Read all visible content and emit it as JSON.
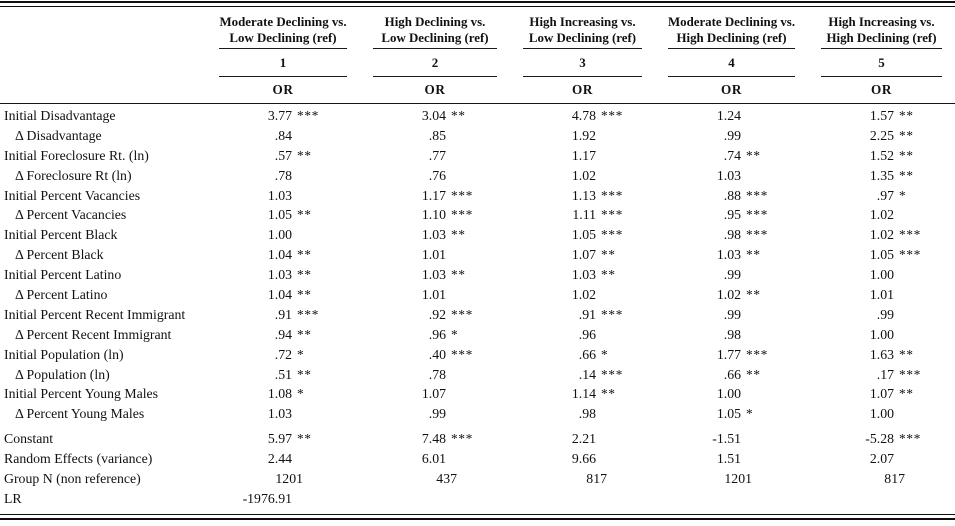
{
  "table": {
    "stat_header": "OR",
    "columns": [
      {
        "title_top": "Moderate Declining vs.",
        "title_bottom": "Low Declining (ref)",
        "number": "1",
        "stat": "OR"
      },
      {
        "title_top": "High Declining vs.",
        "title_bottom": "Low Declining (ref)",
        "number": "2",
        "stat": "OR"
      },
      {
        "title_top": "High Increasing vs.",
        "title_bottom": "Low Declining (ref)",
        "number": "3",
        "stat": "OR"
      },
      {
        "title_top": "Moderate Declining vs.",
        "title_bottom": "High Declining (ref)",
        "number": "4",
        "stat": "OR"
      },
      {
        "title_top": "High Increasing vs.",
        "title_bottom": "High Declining (ref)",
        "number": "5",
        "stat": "OR"
      }
    ],
    "rows": [
      {
        "label": "Initial Disadvantage",
        "indent": false,
        "gap_before": false,
        "cells": [
          {
            "v": "3.77",
            "s": "***"
          },
          {
            "v": "3.04",
            "s": "**"
          },
          {
            "v": "4.78",
            "s": "***"
          },
          {
            "v": "1.24",
            "s": ""
          },
          {
            "v": "1.57",
            "s": "**"
          }
        ]
      },
      {
        "label": "Δ Disadvantage",
        "indent": true,
        "gap_before": false,
        "cells": [
          {
            "v": ".84",
            "s": ""
          },
          {
            "v": ".85",
            "s": ""
          },
          {
            "v": "1.92",
            "s": ""
          },
          {
            "v": ".99",
            "s": ""
          },
          {
            "v": "2.25",
            "s": "**"
          }
        ]
      },
      {
        "label": "Initial Foreclosure Rt. (ln)",
        "indent": false,
        "gap_before": false,
        "cells": [
          {
            "v": ".57",
            "s": "**"
          },
          {
            "v": ".77",
            "s": ""
          },
          {
            "v": "1.17",
            "s": ""
          },
          {
            "v": ".74",
            "s": "**"
          },
          {
            "v": "1.52",
            "s": "**"
          }
        ]
      },
      {
        "label": "Δ Foreclosure Rt (ln)",
        "indent": true,
        "gap_before": false,
        "cells": [
          {
            "v": ".78",
            "s": ""
          },
          {
            "v": ".76",
            "s": ""
          },
          {
            "v": "1.02",
            "s": ""
          },
          {
            "v": "1.03",
            "s": ""
          },
          {
            "v": "1.35",
            "s": "**"
          }
        ]
      },
      {
        "label": "Initial Percent Vacancies",
        "indent": false,
        "gap_before": false,
        "cells": [
          {
            "v": "1.03",
            "s": ""
          },
          {
            "v": "1.17",
            "s": "***"
          },
          {
            "v": "1.13",
            "s": "***"
          },
          {
            "v": ".88",
            "s": "***"
          },
          {
            "v": ".97",
            "s": "*"
          }
        ]
      },
      {
        "label": "Δ Percent Vacancies",
        "indent": true,
        "gap_before": false,
        "cells": [
          {
            "v": "1.05",
            "s": "**"
          },
          {
            "v": "1.10",
            "s": "***"
          },
          {
            "v": "1.11",
            "s": "***"
          },
          {
            "v": ".95",
            "s": "***"
          },
          {
            "v": "1.02",
            "s": ""
          }
        ]
      },
      {
        "label": "Initial Percent Black",
        "indent": false,
        "gap_before": false,
        "cells": [
          {
            "v": "1.00",
            "s": ""
          },
          {
            "v": "1.03",
            "s": "**"
          },
          {
            "v": "1.05",
            "s": "***"
          },
          {
            "v": ".98",
            "s": "***"
          },
          {
            "v": "1.02",
            "s": "***"
          }
        ]
      },
      {
        "label": "Δ Percent Black",
        "indent": true,
        "gap_before": false,
        "cells": [
          {
            "v": "1.04",
            "s": "**"
          },
          {
            "v": "1.01",
            "s": ""
          },
          {
            "v": "1.07",
            "s": "**"
          },
          {
            "v": "1.03",
            "s": "**"
          },
          {
            "v": "1.05",
            "s": "***"
          }
        ]
      },
      {
        "label": "Initial Percent Latino",
        "indent": false,
        "gap_before": false,
        "cells": [
          {
            "v": "1.03",
            "s": "**"
          },
          {
            "v": "1.03",
            "s": "**"
          },
          {
            "v": "1.03",
            "s": "**"
          },
          {
            "v": ".99",
            "s": ""
          },
          {
            "v": "1.00",
            "s": ""
          }
        ]
      },
      {
        "label": "Δ Percent Latino",
        "indent": true,
        "gap_before": false,
        "cells": [
          {
            "v": "1.04",
            "s": "**"
          },
          {
            "v": "1.01",
            "s": ""
          },
          {
            "v": "1.02",
            "s": ""
          },
          {
            "v": "1.02",
            "s": "**"
          },
          {
            "v": "1.01",
            "s": ""
          }
        ]
      },
      {
        "label": "Initial Percent Recent Immigrant",
        "indent": false,
        "gap_before": false,
        "cells": [
          {
            "v": ".91",
            "s": "***"
          },
          {
            "v": ".92",
            "s": "***"
          },
          {
            "v": ".91",
            "s": "***"
          },
          {
            "v": ".99",
            "s": ""
          },
          {
            "v": ".99",
            "s": ""
          }
        ]
      },
      {
        "label": "Δ Percent Recent Immigrant",
        "indent": true,
        "gap_before": false,
        "cells": [
          {
            "v": ".94",
            "s": "**"
          },
          {
            "v": ".96",
            "s": "*"
          },
          {
            "v": ".96",
            "s": ""
          },
          {
            "v": ".98",
            "s": ""
          },
          {
            "v": "1.00",
            "s": ""
          }
        ]
      },
      {
        "label": "Initial Population (ln)",
        "indent": false,
        "gap_before": false,
        "cells": [
          {
            "v": ".72",
            "s": "*"
          },
          {
            "v": ".40",
            "s": "***"
          },
          {
            "v": ".66",
            "s": "*"
          },
          {
            "v": "1.77",
            "s": "***"
          },
          {
            "v": "1.63",
            "s": "**"
          }
        ]
      },
      {
        "label": "Δ Population (ln)",
        "indent": true,
        "gap_before": false,
        "cells": [
          {
            "v": ".51",
            "s": "**"
          },
          {
            "v": ".78",
            "s": ""
          },
          {
            "v": ".14",
            "s": "***"
          },
          {
            "v": ".66",
            "s": "**"
          },
          {
            "v": ".17",
            "s": "***"
          }
        ]
      },
      {
        "label": "Initial Percent Young Males",
        "indent": false,
        "gap_before": false,
        "cells": [
          {
            "v": "1.08",
            "s": "*"
          },
          {
            "v": "1.07",
            "s": ""
          },
          {
            "v": "1.14",
            "s": "**"
          },
          {
            "v": "1.00",
            "s": ""
          },
          {
            "v": "1.07",
            "s": "**"
          }
        ]
      },
      {
        "label": "Δ Percent Young Males",
        "indent": true,
        "gap_before": false,
        "cells": [
          {
            "v": "1.03",
            "s": ""
          },
          {
            "v": ".99",
            "s": ""
          },
          {
            "v": ".98",
            "s": ""
          },
          {
            "v": "1.05",
            "s": "*"
          },
          {
            "v": "1.00",
            "s": ""
          }
        ]
      },
      {
        "label": "Constant",
        "indent": false,
        "gap_before": true,
        "cells": [
          {
            "v": "5.97",
            "s": "**"
          },
          {
            "v": "7.48",
            "s": "***"
          },
          {
            "v": "2.21",
            "s": ""
          },
          {
            "v": "-1.51",
            "s": ""
          },
          {
            "v": "-5.28",
            "s": "***"
          }
        ]
      },
      {
        "label": "Random Effects (variance)",
        "indent": false,
        "gap_before": false,
        "cells": [
          {
            "v": "2.44",
            "s": ""
          },
          {
            "v": "6.01",
            "s": ""
          },
          {
            "v": "9.66",
            "s": ""
          },
          {
            "v": "1.51",
            "s": ""
          },
          {
            "v": "2.07",
            "s": ""
          }
        ]
      },
      {
        "label": "Group N (non reference)",
        "indent": false,
        "gap_before": false,
        "cells": [
          {
            "v": "1201",
            "s": ""
          },
          {
            "v": "437",
            "s": ""
          },
          {
            "v": "817",
            "s": ""
          },
          {
            "v": "1201",
            "s": ""
          },
          {
            "v": "817",
            "s": ""
          }
        ]
      },
      {
        "label": "LR",
        "indent": false,
        "gap_before": false,
        "cells": [
          {
            "v": "-1976.91",
            "s": ""
          },
          {
            "v": "",
            "s": ""
          },
          {
            "v": "",
            "s": ""
          },
          {
            "v": "",
            "s": ""
          },
          {
            "v": "",
            "s": ""
          }
        ]
      }
    ]
  }
}
